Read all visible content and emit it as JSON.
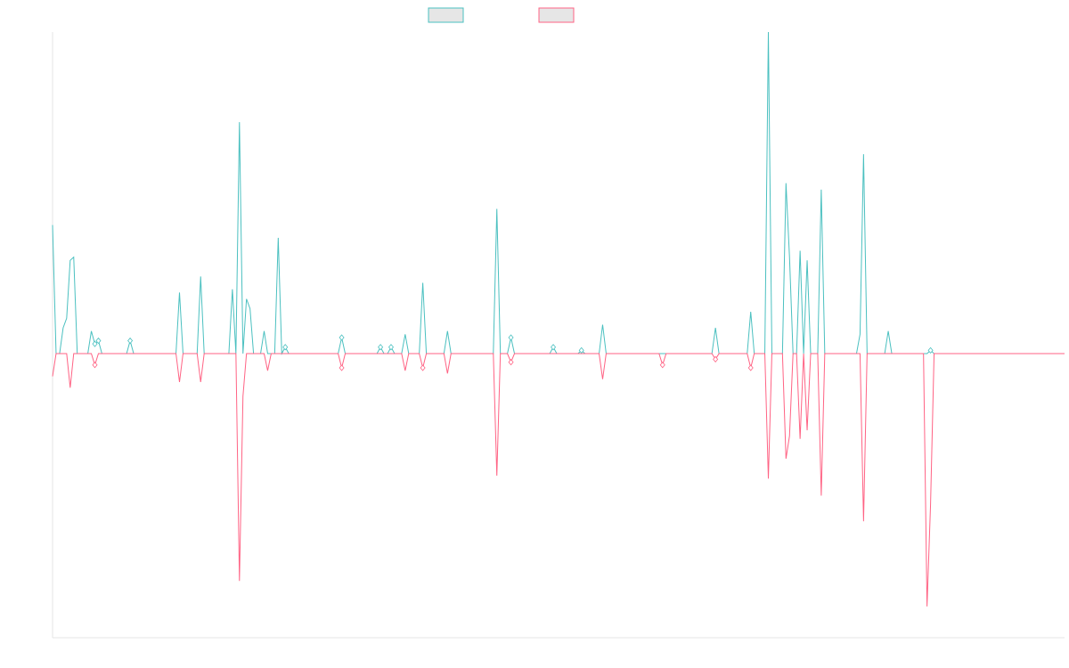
{
  "chart_data": {
    "type": "line",
    "title": "",
    "xlabel": "",
    "ylabel": "",
    "grid": false,
    "legend_position": "top-center",
    "x_range": [
      0,
      287
    ],
    "ylim": [
      -1,
      1
    ],
    "series": [
      {
        "color": "#4bc0c0",
        "fill": "#e6e6e6",
        "spikes": [
          [
            0,
            0.4
          ],
          [
            3,
            0.08
          ],
          [
            4,
            0.11
          ],
          [
            5,
            0.29
          ],
          [
            6,
            0.3
          ],
          [
            11,
            0.07
          ],
          [
            12,
            0.03
          ],
          [
            13,
            0.04
          ],
          [
            22,
            0.04
          ],
          [
            36,
            0.19
          ],
          [
            42,
            0.24
          ],
          [
            51,
            0.2
          ],
          [
            53,
            0.72
          ],
          [
            55,
            0.17
          ],
          [
            56,
            0.14
          ],
          [
            60,
            0.07
          ],
          [
            64,
            0.36
          ],
          [
            66,
            0.02
          ],
          [
            82,
            0.05
          ],
          [
            93,
            0.02
          ],
          [
            96,
            0.02
          ],
          [
            100,
            0.06
          ],
          [
            105,
            0.22
          ],
          [
            112,
            0.07
          ],
          [
            126,
            0.45
          ],
          [
            130,
            0.05
          ],
          [
            142,
            0.02
          ],
          [
            150,
            0.01
          ],
          [
            156,
            0.09
          ],
          [
            188,
            0.08
          ],
          [
            198,
            0.13
          ],
          [
            203,
            1.0
          ],
          [
            208,
            0.53
          ],
          [
            209,
            0.3
          ],
          [
            212,
            0.32
          ],
          [
            214,
            0.29
          ],
          [
            218,
            0.51
          ],
          [
            229,
            0.06
          ],
          [
            230,
            0.62
          ],
          [
            237,
            0.07
          ],
          [
            249,
            0.01
          ]
        ],
        "cumulative_end": 0.0
      },
      {
        "color": "#ff6384",
        "fill": "#e6e6e6",
        "spikes": [
          [
            0,
            -0.08
          ],
          [
            5,
            -0.12
          ],
          [
            12,
            -0.04
          ],
          [
            36,
            -0.1
          ],
          [
            42,
            -0.1
          ],
          [
            53,
            -0.8
          ],
          [
            54,
            -0.15
          ],
          [
            61,
            -0.06
          ],
          [
            82,
            -0.05
          ],
          [
            100,
            -0.06
          ],
          [
            105,
            -0.05
          ],
          [
            112,
            -0.07
          ],
          [
            126,
            -0.43
          ],
          [
            130,
            -0.03
          ],
          [
            156,
            -0.09
          ],
          [
            173,
            -0.04
          ],
          [
            188,
            -0.02
          ],
          [
            198,
            -0.05
          ],
          [
            203,
            -0.44
          ],
          [
            208,
            -0.37
          ],
          [
            209,
            -0.29
          ],
          [
            212,
            -0.3
          ],
          [
            214,
            -0.27
          ],
          [
            218,
            -0.5
          ],
          [
            230,
            -0.59
          ],
          [
            248,
            -0.89
          ],
          [
            249,
            -0.53
          ]
        ]
      }
    ]
  }
}
